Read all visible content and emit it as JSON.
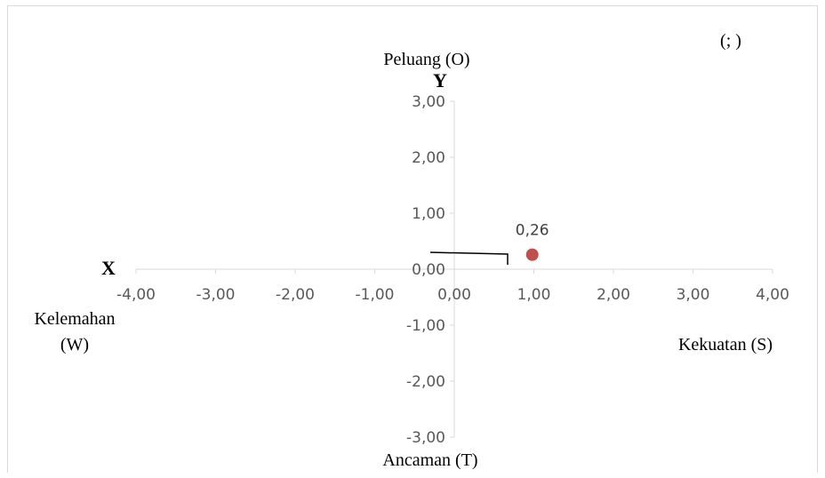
{
  "chart_data": {
    "type": "scatter",
    "points": [
      {
        "x": 0.98,
        "y": 0.26,
        "label": "0,26"
      }
    ],
    "xlim": [
      -4,
      4
    ],
    "ylim": [
      -3,
      3
    ],
    "x_ticks": [
      "-4,00",
      "-3,00",
      "-2,00",
      "-1,00",
      "0,00",
      "1,00",
      "2,00",
      "3,00",
      "4,00"
    ],
    "y_ticks": [
      "-3,00",
      "-2,00",
      "-1,00",
      "0,00",
      "1,00",
      "2,00",
      "3,00"
    ],
    "grid": false,
    "point_color": "#c0504d",
    "axis_color": "#d9d9d9",
    "annotations": {
      "coord_note": "(; )",
      "top": "Peluang (O)",
      "y_axis": "Y",
      "x_axis": "X",
      "left_line1": "Kelemahan",
      "left_line2": "(W)",
      "right": "Kekuatan (S)",
      "bottom": "Ancaman (T)"
    }
  }
}
